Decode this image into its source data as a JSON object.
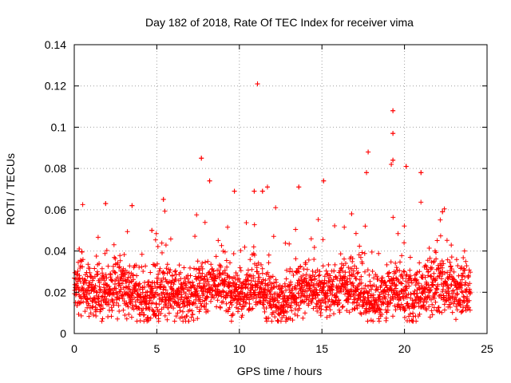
{
  "chart_data": {
    "type": "scatter",
    "title": "Day 182 of 2018, Rate Of TEC Index for receiver vima",
    "xlabel": "GPS time / hours",
    "ylabel": "ROTI / TECUs",
    "xlim": [
      0,
      25
    ],
    "ylim": [
      0,
      0.14
    ],
    "xticks": [
      0,
      5,
      10,
      15,
      20,
      25
    ],
    "xtick_labels": [
      "0",
      "5",
      "10",
      "15",
      "20",
      "25"
    ],
    "yticks": [
      0,
      0.02,
      0.04,
      0.06,
      0.08,
      0.1,
      0.12,
      0.14
    ],
    "ytick_labels": [
      "0",
      "0.02",
      "0.04",
      "0.06",
      "0.08",
      "0.1",
      "0.12",
      "0.14"
    ],
    "grid": true,
    "marker": "+",
    "color": "#ff0000",
    "series": [
      {
        "name": "ROTI",
        "x_range": [
          0,
          24
        ],
        "baseline_mean": 0.02,
        "baseline_spread": [
          0.006,
          0.035
        ],
        "notable_points": [
          {
            "x": 11.1,
            "y": 0.121
          },
          {
            "x": 19.3,
            "y": 0.108
          },
          {
            "x": 19.3,
            "y": 0.097
          },
          {
            "x": 17.8,
            "y": 0.088
          },
          {
            "x": 7.7,
            "y": 0.085
          },
          {
            "x": 19.3,
            "y": 0.084
          },
          {
            "x": 19.2,
            "y": 0.082
          },
          {
            "x": 20.1,
            "y": 0.081
          },
          {
            "x": 21.0,
            "y": 0.078
          },
          {
            "x": 17.7,
            "y": 0.078
          },
          {
            "x": 8.2,
            "y": 0.074
          },
          {
            "x": 15.1,
            "y": 0.074
          },
          {
            "x": 11.7,
            "y": 0.071
          },
          {
            "x": 13.6,
            "y": 0.071
          },
          {
            "x": 11.4,
            "y": 0.069
          },
          {
            "x": 9.7,
            "y": 0.069
          },
          {
            "x": 10.9,
            "y": 0.069
          },
          {
            "x": 1.9,
            "y": 0.063
          },
          {
            "x": 3.5,
            "y": 0.062
          },
          {
            "x": 5.4,
            "y": 0.065
          },
          {
            "x": 22.3,
            "y": 0.059
          },
          {
            "x": 16.8,
            "y": 0.058
          },
          {
            "x": 4.7,
            "y": 0.05
          },
          {
            "x": 0.3,
            "y": 0.041
          }
        ]
      }
    ]
  }
}
